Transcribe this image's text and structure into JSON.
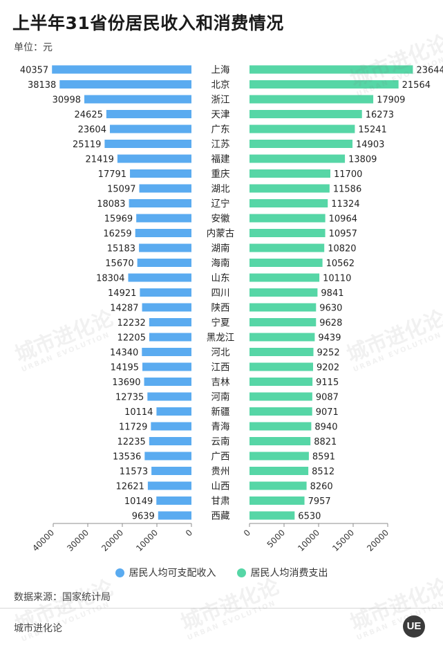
{
  "header": {
    "title": "上半年31省份居民收入和消费情况",
    "unit": "单位：元"
  },
  "legend": {
    "income_label": "居民人均可支配收入",
    "consumption_label": "居民人均消费支出"
  },
  "footer": {
    "source": "数据来源：国家统计局",
    "brand": "城市进化论",
    "logo_text": "UE"
  },
  "colors": {
    "income": "#5aabf0",
    "consumption": "#56d6a6",
    "axis": "#8c8c8c"
  },
  "chart_data": {
    "type": "bar",
    "categories": [
      "上海",
      "北京",
      "浙江",
      "天津",
      "广东",
      "江苏",
      "福建",
      "重庆",
      "湖北",
      "辽宁",
      "安徽",
      "内蒙古",
      "湖南",
      "海南",
      "山东",
      "四川",
      "陕西",
      "宁夏",
      "黑龙江",
      "河北",
      "江西",
      "吉林",
      "河南",
      "新疆",
      "青海",
      "云南",
      "广西",
      "贵州",
      "山西",
      "甘肃",
      "西藏"
    ],
    "series": [
      {
        "name": "居民人均可支配收入",
        "values": [
          40357,
          38138,
          30998,
          24625,
          23604,
          25119,
          21419,
          17791,
          15097,
          18083,
          15969,
          16259,
          15183,
          15670,
          18304,
          14921,
          14287,
          12232,
          12205,
          14340,
          14195,
          13690,
          12735,
          10114,
          11729,
          12235,
          13536,
          11573,
          12621,
          10149,
          9639
        ],
        "xlim": [
          0,
          40000
        ],
        "ticks": [
          40000,
          30000,
          20000,
          10000,
          0
        ]
      },
      {
        "name": "居民人均消费支出",
        "values": [
          23644,
          21564,
          17909,
          16273,
          15241,
          14903,
          13809,
          11700,
          11586,
          11324,
          10964,
          10957,
          10820,
          10562,
          10110,
          9841,
          9630,
          9628,
          9439,
          9252,
          9202,
          9115,
          9087,
          9071,
          8940,
          8821,
          8591,
          8512,
          8260,
          7957,
          6530
        ],
        "xlim": [
          0,
          20000
        ],
        "ticks": [
          0,
          5000,
          10000,
          15000,
          20000
        ]
      }
    ]
  },
  "watermark": {
    "text": "城市进化论",
    "subtext": "URBAN EVOLUTION"
  }
}
